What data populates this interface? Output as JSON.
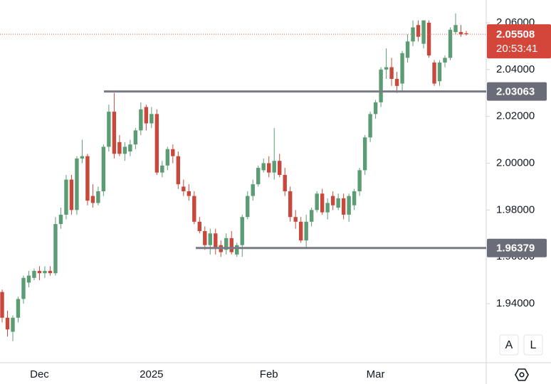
{
  "chart_data": {
    "type": "candlestick",
    "categories": [
      null,
      null,
      null,
      null,
      null,
      null,
      null,
      "Dec",
      null,
      null,
      null,
      null,
      null,
      null,
      null,
      null,
      null,
      null,
      null,
      null,
      null,
      null,
      null,
      null,
      null,
      null,
      null,
      null,
      "2025",
      null,
      null,
      null,
      null,
      null,
      null,
      null,
      null,
      null,
      null,
      null,
      null,
      null,
      null,
      null,
      null,
      null,
      null,
      null,
      null,
      null,
      "Feb",
      null,
      null,
      null,
      null,
      null,
      null,
      null,
      null,
      null,
      null,
      null,
      null,
      null,
      null,
      null,
      null,
      null,
      null,
      null,
      "Mar",
      null,
      null,
      null,
      null,
      null,
      null,
      null,
      null,
      null,
      null,
      null,
      null,
      null,
      null,
      null,
      null,
      null
    ],
    "open": [
      1.945,
      1.934,
      1.928,
      1.934,
      1.942,
      1.949,
      1.951,
      1.954,
      1.953,
      1.954,
      1.953,
      1.974,
      1.978,
      1.993,
      1.98,
      2.002,
      2.003,
      1.986,
      1.983,
      1.988,
      2.007,
      2.022,
      2.009,
      2.004,
      2.005,
      2.008,
      2.014,
      2.024,
      2.017,
      2.021,
      1.996,
      1.999,
      2.006,
      2.003,
      1.99,
      1.988,
      1.986,
      1.975,
      1.971,
      1.965,
      1.97,
      1.965,
      1.963,
      1.968,
      1.961,
      1.965,
      1.977,
      1.986,
      1.991,
      1.997,
      2.0,
      1.996,
      2.001,
      1.995,
      1.988,
      1.977,
      1.975,
      1.967,
      1.975,
      1.98,
      1.987,
      1.979,
      1.986,
      1.981,
      1.985,
      1.978,
      1.982,
      1.988,
      1.997,
      2.011,
      2.021,
      2.026,
      2.04,
      2.041,
      2.036,
      2.034,
      2.045,
      2.052,
      2.059,
      2.051,
      2.06,
      2.043,
      2.035,
      2.043,
      2.045,
      2.056,
      2.056,
      2.0555
    ],
    "high": [
      1.946,
      1.937,
      1.935,
      1.943,
      1.952,
      1.954,
      1.955,
      1.956,
      1.956,
      1.956,
      1.977,
      1.981,
      1.995,
      1.995,
      2.003,
      2.01,
      2.004,
      1.991,
      1.99,
      2.008,
      2.025,
      2.03,
      2.012,
      2.009,
      2.01,
      2.015,
      2.026,
      2.025,
      2.024,
      2.023,
      2.001,
      2.007,
      2.008,
      2.005,
      1.993,
      1.991,
      1.988,
      1.977,
      1.973,
      1.972,
      1.972,
      1.967,
      1.97,
      1.971,
      1.966,
      1.978,
      1.988,
      1.993,
      1.999,
      2.002,
      2.003,
      2.015,
      2.004,
      1.998,
      1.99,
      1.98,
      1.977,
      1.978,
      1.981,
      1.988,
      1.989,
      1.985,
      1.988,
      1.987,
      1.987,
      1.987,
      1.989,
      1.998,
      2.012,
      2.022,
      2.027,
      2.041,
      2.049,
      2.045,
      2.039,
      2.048,
      2.055,
      2.061,
      2.061,
      2.061,
      2.061,
      2.044,
      2.044,
      2.046,
      2.058,
      2.064,
      2.059,
      2.0565
    ],
    "low": [
      1.932,
      1.926,
      1.924,
      1.932,
      1.94,
      1.947,
      1.95,
      1.95,
      1.951,
      1.952,
      1.952,
      1.972,
      1.976,
      1.978,
      1.978,
      2.0,
      1.982,
      1.981,
      1.982,
      1.986,
      2.005,
      2.002,
      2.003,
      2.001,
      2.003,
      2.006,
      2.012,
      2.014,
      2.015,
      1.995,
      1.994,
      1.997,
      2.0,
      1.989,
      1.986,
      1.984,
      1.974,
      1.97,
      1.963,
      1.961,
      1.961,
      1.96,
      1.961,
      1.961,
      1.96,
      1.96,
      1.976,
      1.984,
      1.99,
      1.996,
      1.994,
      1.993,
      1.994,
      1.986,
      1.975,
      1.972,
      1.966,
      1.964,
      1.973,
      1.979,
      1.978,
      1.976,
      1.98,
      1.98,
      1.976,
      1.975,
      1.98,
      1.986,
      1.995,
      2.009,
      2.019,
      2.024,
      2.036,
      2.033,
      2.03,
      2.031,
      2.043,
      2.05,
      2.052,
      2.049,
      2.045,
      2.033,
      2.033,
      2.041,
      2.044,
      2.055,
      2.054,
      2.0545
    ],
    "close": [
      1.934,
      1.929,
      1.934,
      1.942,
      1.951,
      1.952,
      1.954,
      1.953,
      1.954,
      1.953,
      1.974,
      1.978,
      1.993,
      1.98,
      2.002,
      2.003,
      1.984,
      1.983,
      1.988,
      2.007,
      2.022,
      2.004,
      2.004,
      2.007,
      2.008,
      2.014,
      2.023,
      2.017,
      2.021,
      1.996,
      1.999,
      2.006,
      2.003,
      1.991,
      1.988,
      1.986,
      1.975,
      1.971,
      1.965,
      1.97,
      1.964,
      1.962,
      1.968,
      1.962,
      1.965,
      1.977,
      1.986,
      1.991,
      1.998,
      2.0,
      1.996,
      2.001,
      1.995,
      1.988,
      1.977,
      1.975,
      1.967,
      1.975,
      1.98,
      1.987,
      1.979,
      1.983,
      1.982,
      1.985,
      1.978,
      1.986,
      1.988,
      1.997,
      2.011,
      2.021,
      2.026,
      2.04,
      2.041,
      2.036,
      2.033,
      2.047,
      2.052,
      2.058,
      2.054,
      2.061,
      2.046,
      2.034,
      2.043,
      2.045,
      2.057,
      2.059,
      2.055,
      2.05508
    ],
    "up_color": "#5b9c74",
    "down_color": "#c9483c",
    "ylim": [
      1.9148,
      2.0697
    ],
    "yticks": [
      {
        "value": 1.94,
        "label": "1.94000"
      },
      {
        "value": 1.96,
        "label": "1.96000"
      },
      {
        "value": 1.98,
        "label": "1.98000"
      },
      {
        "value": 2.0,
        "label": "2.00000"
      },
      {
        "value": 2.02,
        "label": "2.02000"
      },
      {
        "value": 2.04,
        "label": "2.04000"
      },
      {
        "value": 2.06,
        "label": "2.06000"
      }
    ],
    "last_price": 2.05508,
    "countdown": "20:53:41",
    "levels": [
      2.03063,
      1.96379
    ],
    "buttons": [
      "A",
      "L"
    ]
  }
}
